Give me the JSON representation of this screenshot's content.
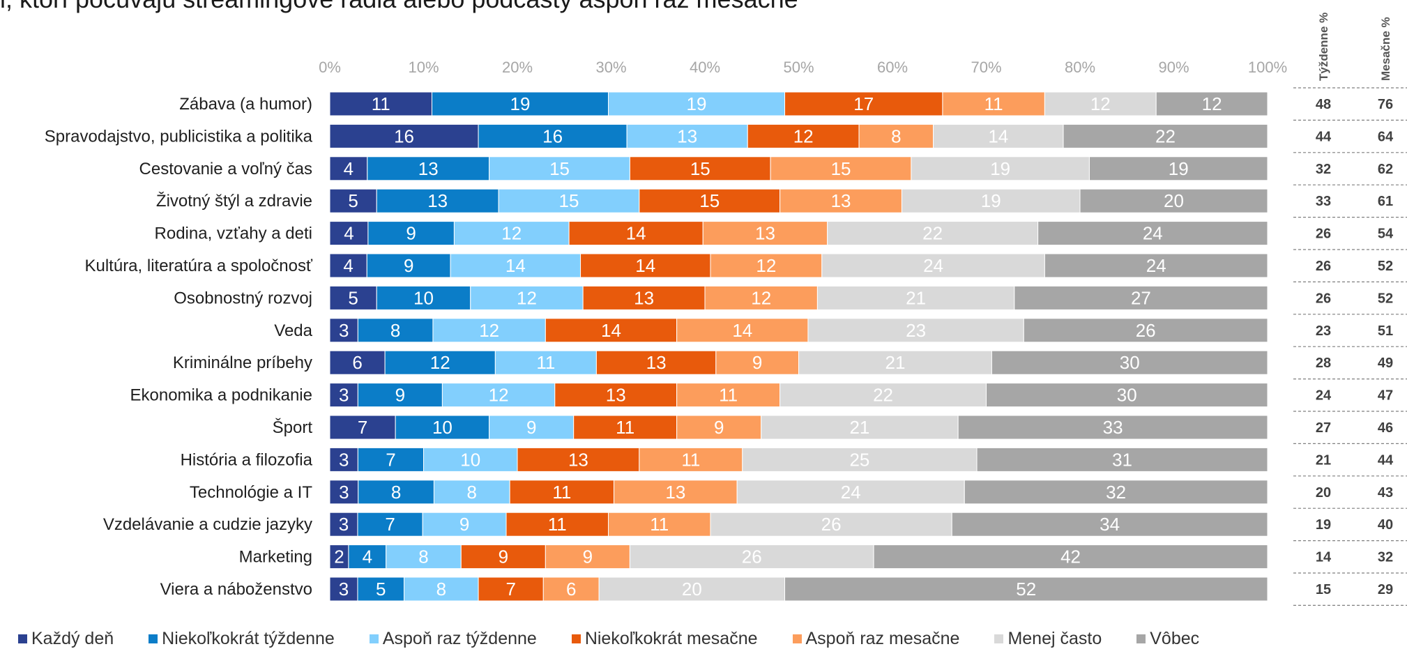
{
  "title": "i, ktorí počúvajú streamingové rádiá alebo podcasty aspoň raz mesačne",
  "chart_data": {
    "type": "bar",
    "orientation": "horizontal",
    "stacked": "percent",
    "x_ticks": [
      "0%",
      "10%",
      "20%",
      "30%",
      "40%",
      "50%",
      "60%",
      "70%",
      "80%",
      "90%",
      "100%"
    ],
    "xlim": [
      0,
      100
    ],
    "categories": [
      "Zábava (a humor)",
      "Spravodajstvo, publicistika a politika",
      "Cestovanie a voľný čas",
      "Životný štýl a zdravie",
      "Rodina, vzťahy a deti",
      "Kultúra, literatúra a spoločnosť",
      "Osobnostný rozvoj",
      "Veda",
      "Kriminálne príbehy",
      "Ekonomika a podnikanie",
      "Šport",
      "História a filozofia",
      "Technológie a IT",
      "Vzdelávanie a cudzie jazyky",
      "Marketing",
      "Viera a náboženstvo"
    ],
    "series": [
      {
        "name": "Každý deň",
        "color": "#2b4190",
        "label_color": "#ffffff",
        "values": [
          11,
          16,
          4,
          5,
          4,
          4,
          5,
          3,
          6,
          3,
          7,
          3,
          3,
          3,
          2,
          3
        ]
      },
      {
        "name": "Niekoľkokrát týždenne",
        "color": "#0b7dc8",
        "label_color": "#ffffff",
        "values": [
          19,
          16,
          13,
          13,
          9,
          9,
          10,
          8,
          12,
          9,
          10,
          7,
          8,
          7,
          4,
          5
        ]
      },
      {
        "name": "Aspoň raz týždenne",
        "color": "#82cffd",
        "label_color": "#ffffff",
        "values": [
          19,
          13,
          15,
          15,
          12,
          14,
          12,
          12,
          11,
          12,
          9,
          10,
          8,
          9,
          8,
          8
        ]
      },
      {
        "name": "Niekoľkokrát mesačne",
        "color": "#e85a0c",
        "label_color": "#ffffff",
        "values": [
          17,
          12,
          15,
          15,
          14,
          14,
          13,
          14,
          13,
          13,
          11,
          13,
          11,
          11,
          9,
          7
        ]
      },
      {
        "name": "Aspoň raz mesačne",
        "color": "#fc9d5c",
        "label_color": "#ffffff",
        "values": [
          11,
          8,
          15,
          13,
          13,
          12,
          12,
          14,
          9,
          11,
          9,
          11,
          13,
          11,
          9,
          6
        ]
      },
      {
        "name": "Menej často",
        "color": "#d9d9d9",
        "label_color": "#ffffff",
        "values": [
          12,
          14,
          19,
          19,
          22,
          24,
          21,
          23,
          21,
          22,
          21,
          25,
          24,
          26,
          26,
          20
        ]
      },
      {
        "name": "Vôbec",
        "color": "#a6a6a6",
        "label_color": "#ffffff",
        "values": [
          12,
          22,
          19,
          20,
          24,
          24,
          27,
          26,
          30,
          30,
          33,
          31,
          32,
          34,
          42,
          52
        ]
      }
    ],
    "side_columns": [
      {
        "header": "Týždenne %",
        "values": [
          48,
          44,
          32,
          33,
          26,
          26,
          26,
          23,
          28,
          24,
          27,
          21,
          20,
          19,
          14,
          15
        ]
      },
      {
        "header": "Mesačne %",
        "values": [
          76,
          64,
          62,
          61,
          54,
          52,
          52,
          51,
          49,
          47,
          46,
          44,
          43,
          40,
          32,
          29
        ]
      }
    ],
    "legend_position": "bottom",
    "grid": false
  }
}
